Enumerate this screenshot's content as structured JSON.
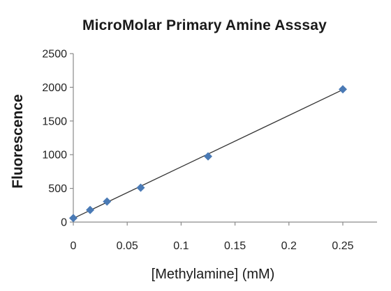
{
  "chart_data": {
    "type": "scatter",
    "title": "MicroMolar Primary Amine Asssay",
    "xlabel": "[Methylamine] (mM)",
    "ylabel": "Fluorescence",
    "xlim": [
      0,
      0.25
    ],
    "ylim": [
      0,
      2500
    ],
    "x_ticks": [
      "0",
      "0.05",
      "0.1",
      "0.15",
      "0.2",
      "0.25"
    ],
    "x_tick_values": [
      0,
      0.05,
      0.1,
      0.15,
      0.2,
      0.25
    ],
    "y_ticks": [
      "0",
      "500",
      "1000",
      "1500",
      "2000",
      "2500"
    ],
    "y_tick_values": [
      0,
      500,
      1000,
      1500,
      2000,
      2500
    ],
    "grid": false,
    "legend": "none",
    "marker_color": "#4a7ab5",
    "trendline": {
      "type": "linear",
      "from": [
        0,
        55
      ],
      "to": [
        0.25,
        1965
      ]
    },
    "series": [
      {
        "marker": "diamond",
        "x": [
          0,
          0.0156,
          0.03125,
          0.0625,
          0.125,
          0.25
        ],
        "y": [
          60,
          180,
          305,
          510,
          975,
          1970
        ]
      }
    ]
  }
}
